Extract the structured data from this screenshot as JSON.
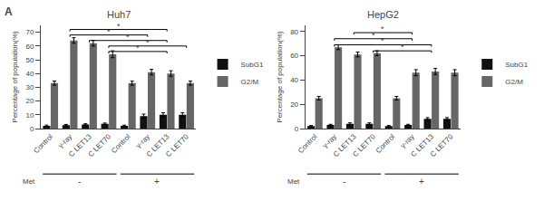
{
  "panel_label": "A",
  "chart_data": [
    {
      "type": "bar",
      "title": "Huh7",
      "ylabel": "Percentage of population(%)",
      "categories": [
        "Control",
        "γ-ray",
        "C LET13",
        "C LET70",
        "Control",
        "γ-ray",
        "C LET13",
        "C LET70"
      ],
      "series": [
        {
          "name": "SubG1",
          "color": "#111111",
          "values": [
            2.0,
            2.5,
            3.0,
            3.5,
            2.0,
            9.0,
            10.0,
            10.0
          ],
          "errors": [
            0.5,
            0.5,
            0.5,
            0.5,
            0.5,
            1.5,
            1.5,
            1.5
          ]
        },
        {
          "name": "G2/M",
          "color": "#666666",
          "values": [
            33.0,
            64.0,
            62.0,
            54.0,
            33.0,
            41.0,
            40.0,
            33.0
          ],
          "errors": [
            1.5,
            2.0,
            2.0,
            2.5,
            1.5,
            2.0,
            2.0,
            1.5
          ]
        }
      ],
      "ylim": [
        0,
        75
      ],
      "yticks": [
        0,
        10,
        20,
        30,
        40,
        50,
        60,
        70
      ],
      "grid": false,
      "brackets": [
        {
          "from": 1,
          "to": 5,
          "y": 68,
          "label": "*"
        },
        {
          "from": 2,
          "to": 6,
          "y": 64,
          "label": "*"
        },
        {
          "from": 1,
          "to": 6,
          "y": 72,
          "label": "*"
        },
        {
          "from": 3,
          "to": 7,
          "y": 60,
          "label": "*"
        },
        {
          "from": 3,
          "to": 6,
          "y": 56,
          "label": "*"
        }
      ],
      "group_title": "Met",
      "groups": [
        {
          "label": "-",
          "from": 0,
          "to": 3
        },
        {
          "label": "+",
          "from": 4,
          "to": 7
        }
      ]
    },
    {
      "type": "bar",
      "title": "HepG2",
      "ylabel": "Percentage of population(%)",
      "categories": [
        "Control",
        "γ-ray",
        "C LET13",
        "C LET70",
        "Control",
        "γ-ray",
        "C LET13",
        "C LET70"
      ],
      "series": [
        {
          "name": "SubG1",
          "color": "#111111",
          "values": [
            2.0,
            3.0,
            4.0,
            4.0,
            2.0,
            3.0,
            8.0,
            8.0
          ],
          "errors": [
            0.5,
            0.5,
            0.7,
            0.7,
            0.5,
            0.5,
            1.0,
            1.0
          ]
        },
        {
          "name": "G2/M",
          "color": "#666666",
          "values": [
            25.0,
            67.0,
            61.0,
            62.0,
            25.0,
            46.0,
            47.0,
            46.0
          ],
          "errors": [
            1.5,
            2.0,
            2.0,
            2.0,
            1.5,
            2.5,
            2.5,
            2.5
          ]
        }
      ],
      "ylim": [
        0,
        85
      ],
      "yticks": [
        0,
        20,
        40,
        60,
        80
      ],
      "grid": false,
      "brackets": [
        {
          "from": 1,
          "to": 5,
          "y": 74,
          "label": "*"
        },
        {
          "from": 2,
          "to": 5,
          "y": 79,
          "label": "*"
        },
        {
          "from": 1,
          "to": 6,
          "y": 69,
          "label": "*"
        },
        {
          "from": 3,
          "to": 6,
          "y": 64,
          "label": "*"
        }
      ],
      "group_title": "Met",
      "groups": [
        {
          "label": "-",
          "from": 0,
          "to": 3
        },
        {
          "label": "+",
          "from": 4,
          "to": 7
        }
      ]
    }
  ]
}
